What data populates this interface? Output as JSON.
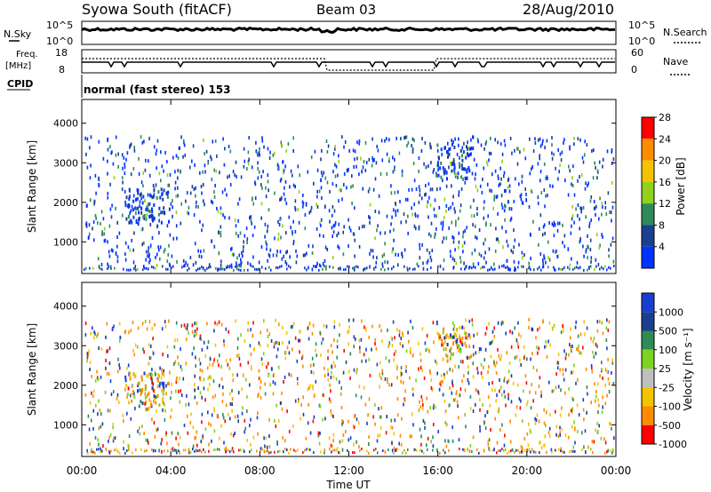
{
  "header": {
    "title": "Syowa South (fitACF)",
    "beam": "Beam 03",
    "date": "28/Aug/2010"
  },
  "top_panels": {
    "nsky_label": "N.Sky",
    "nsky_ticks": [
      "10^5",
      "10^0"
    ],
    "nsearch_label": "N.Search",
    "nsearch_ticks": [
      "10^5",
      "10^0"
    ],
    "freq_label": "Freq.",
    "freq_unit": "[MHz]",
    "freq_ticks": [
      "18",
      "8"
    ],
    "nave_label": "Nave",
    "nave_ticks": [
      "60",
      "0"
    ],
    "cpid_label": "CPID",
    "cpid_text": "normal (fast stereo) 153"
  },
  "chart_data": [
    {
      "type": "heatmap",
      "name": "power",
      "ylabel": "Slant Range [km]",
      "yticks": [
        "1000",
        "2000",
        "3000",
        "4000"
      ],
      "ylim": [
        200,
        4600
      ],
      "colorbar_label": "Power [dB]",
      "colorbar_ticks": [
        "4",
        "8",
        "12",
        "16",
        "20",
        "24",
        "28"
      ],
      "colors": {
        "red": "#ff0000",
        "orange": "#ff8c00",
        "yellow": "#f4c400",
        "lightgreen": "#8fd11b",
        "green": "#2e8b57",
        "navy": "#1a3f8f",
        "blue": "#0033ff"
      }
    },
    {
      "type": "heatmap",
      "name": "velocity",
      "ylabel": "Slant Range [km]",
      "yticks": [
        "1000",
        "2000",
        "3000",
        "4000"
      ],
      "ylim": [
        200,
        4600
      ],
      "colorbar_label": "Velocity [m s⁻¹]",
      "colorbar_ticks": [
        "1000",
        "500",
        "100",
        "25",
        "-25",
        "-100",
        "-500",
        "-1000"
      ],
      "colors": {
        "blue": "#1a3fd0",
        "navy": "#1a3f8f",
        "green": "#2e8b57",
        "lightgreen": "#7ed321",
        "gray": "#bfbfbf",
        "yellow": "#f4c400",
        "orange": "#ff8c00",
        "red": "#ff0000"
      }
    }
  ],
  "xaxis": {
    "label": "Time UT",
    "ticks": [
      "00:00",
      "04:00",
      "08:00",
      "12:00",
      "16:00",
      "20:00",
      "00:00"
    ]
  }
}
